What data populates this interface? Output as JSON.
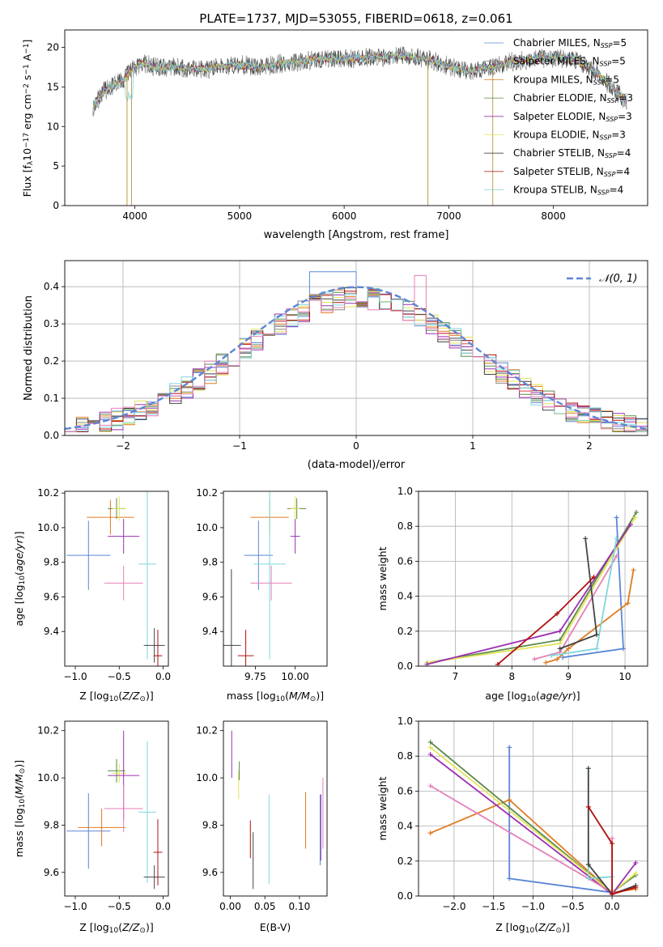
{
  "colors": {
    "Chabrier MILES": "#5b86d6",
    "Salpeter MILES": "#8a8a8a",
    "Kroupa MILES": "#e07b20",
    "Chabrier ELODIE": "#5a8a4a",
    "Salpeter ELODIE": "#9b30b0",
    "Kroupa ELODIE": "#e3e35a",
    "Chabrier STELIB": "#444444",
    "Salpeter STELIB": "#b01010",
    "Kroupa STELIB": "#7fd6dc",
    "pink": "#e47fb8",
    "gaussian": "#5b86d6",
    "grid": "#b0b0b0"
  },
  "chart_data": [
    {
      "id": "spectrum",
      "type": "line",
      "title": "PLATE=1737, MJD=53055, FIBERID=0618, z=0.061",
      "xlabel": "wavelength [Angstrom, rest frame]",
      "ylabel": "Flux [f_λ10^-17 erg cm^-2 s^-1 A^-1]",
      "xlim": [
        3330,
        8900
      ],
      "ylim": [
        0,
        22.2
      ],
      "xticks": [
        4000,
        5000,
        6000,
        7000,
        8000
      ],
      "yticks": [
        0,
        5,
        10,
        15,
        20
      ],
      "grid": false,
      "legend": "top-right",
      "legend_entries": [
        {
          "base": "Chabrier MILES, N",
          "sub": "SSP",
          "tail": "=5",
          "color": "Chabrier MILES"
        },
        {
          "base": "Salpeter MILES, N",
          "sub": "SSP",
          "tail": "=5",
          "color": "Salpeter MILES"
        },
        {
          "base": "Kroupa MILES, N",
          "sub": "SSP",
          "tail": "=5",
          "color": "Kroupa MILES"
        },
        {
          "base": "Chabrier ELODIE, N",
          "sub": "SSP",
          "tail": "=3",
          "color": "Chabrier ELODIE"
        },
        {
          "base": "Salpeter ELODIE, N",
          "sub": "SSP",
          "tail": "=3",
          "color": "Salpeter ELODIE"
        },
        {
          "base": "Kroupa ELODIE, N",
          "sub": "SSP",
          "tail": "=3",
          "color": "Kroupa ELODIE"
        },
        {
          "base": "Chabrier STELIB, N",
          "sub": "SSP",
          "tail": "=4",
          "color": "Chabrier STELIB"
        },
        {
          "base": "Salpeter STELIB, N",
          "sub": "SSP",
          "tail": "=4",
          "color": "Salpeter STELIB"
        },
        {
          "base": "Kroupa STELIB, N",
          "sub": "SSP",
          "tail": "=4",
          "color": "Kroupa STELIB"
        }
      ],
      "continuum": [
        [
          3600,
          12.5
        ],
        [
          3700,
          14.5
        ],
        [
          3800,
          15.2
        ],
        [
          3900,
          16
        ],
        [
          3950,
          17
        ],
        [
          4000,
          17.5
        ],
        [
          4100,
          18
        ],
        [
          4200,
          17.5
        ],
        [
          4400,
          17.5
        ],
        [
          4600,
          17.2
        ],
        [
          4800,
          17.5
        ],
        [
          5000,
          17.8
        ],
        [
          5200,
          17.4
        ],
        [
          5400,
          18
        ],
        [
          5600,
          18.3
        ],
        [
          5800,
          18.5
        ],
        [
          6000,
          18.6
        ],
        [
          6200,
          18.7
        ],
        [
          6400,
          18.8
        ],
        [
          6600,
          19
        ],
        [
          6800,
          18.5
        ],
        [
          7000,
          17.6
        ],
        [
          7200,
          17
        ],
        [
          7400,
          17.5
        ],
        [
          7600,
          18.2
        ],
        [
          7800,
          18.5
        ],
        [
          8000,
          18.7
        ],
        [
          8200,
          18.5
        ],
        [
          8400,
          17
        ],
        [
          8600,
          14.5
        ],
        [
          8700,
          13
        ]
      ],
      "spikes": [
        [
          3925,
          -18
        ],
        [
          3968,
          -18
        ],
        [
          6800,
          -18
        ],
        [
          7420,
          -18
        ]
      ]
    },
    {
      "id": "residuals",
      "type": "histogram",
      "xlabel": "(data-model)/error",
      "ylabel": "Normed distribution",
      "xlim": [
        -2.5,
        2.5
      ],
      "ylim": [
        0,
        0.47
      ],
      "xticks": [
        -2,
        -1,
        0,
        1,
        2
      ],
      "yticks": [
        0.0,
        0.1,
        0.2,
        0.3,
        0.4
      ],
      "grid": true,
      "legend": "top-right",
      "legend_label": "N(0,1)",
      "bin_width": 0.1,
      "reference_curve": "normal(0,1)"
    },
    {
      "id": "age_vs_Z",
      "type": "scatter",
      "xlabel": "Z [log10(Z/Z⊙)]",
      "ylabel": "age [log10(age/yr)]",
      "xlim": [
        -1.12,
        0.06
      ],
      "ylim": [
        9.2,
        10.21
      ],
      "xticks": [
        -1.0,
        -0.5,
        0.0
      ],
      "yticks": [
        9.4,
        9.6,
        9.8,
        10.0,
        10.2
      ],
      "points": [
        {
          "c": "Chabrier MILES",
          "x": -0.85,
          "y": 9.84,
          "ex": 0.25,
          "ey": 0.2
        },
        {
          "c": "Kroupa MILES",
          "x": -0.6,
          "y": 10.06,
          "ex": 0.27,
          "ey": 0.1
        },
        {
          "c": "Chabrier ELODIE",
          "x": -0.53,
          "y": 10.11,
          "ex": 0.1,
          "ey": 0.06
        },
        {
          "c": "Kroupa ELODIE",
          "x": -0.5,
          "y": 10.11,
          "ex": 0.08,
          "ey": 0.07
        },
        {
          "c": "Salpeter ELODIE",
          "x": -0.45,
          "y": 9.95,
          "ex": 0.18,
          "ey": 0.1
        },
        {
          "c": "pink",
          "x": -0.45,
          "y": 9.68,
          "ex": 0.22,
          "ey": 0.1
        },
        {
          "c": "Kroupa STELIB",
          "x": -0.18,
          "y": 9.79,
          "ex": 0.1,
          "ey": 0.55
        },
        {
          "c": "Chabrier STELIB",
          "x": -0.1,
          "y": 9.32,
          "ex": 0.12,
          "ey": 0.1
        },
        {
          "c": "Salpeter STELIB",
          "x": -0.06,
          "y": 9.26,
          "ex": 0.05,
          "ey": 0.15
        }
      ]
    },
    {
      "id": "age_vs_mass",
      "type": "scatter",
      "xlabel": "mass [log10(M/M⊙)]",
      "ylabel": "",
      "xlim": [
        9.55,
        10.2
      ],
      "ylim": [
        9.2,
        10.21
      ],
      "xticks": [
        9.75,
        10.0
      ],
      "yticks": [
        9.4,
        9.6,
        9.8,
        10.0,
        10.2
      ],
      "points": [
        {
          "c": "Chabrier MILES",
          "x": 9.77,
          "y": 9.84,
          "ex": 0.09,
          "ey": 0.2
        },
        {
          "c": "Kroupa MILES",
          "x": 9.84,
          "y": 10.06,
          "ex": 0.12,
          "ey": 0.1
        },
        {
          "c": "Chabrier ELODIE",
          "x": 10.01,
          "y": 10.11,
          "ex": 0.06,
          "ey": 0.06
        },
        {
          "c": "Kroupa ELODIE",
          "x": 10.0,
          "y": 10.11,
          "ex": 0.03,
          "ey": 0.07
        },
        {
          "c": "Salpeter ELODIE",
          "x": 10.0,
          "y": 9.95,
          "ex": 0.03,
          "ey": 0.1
        },
        {
          "c": "pink",
          "x": 9.85,
          "y": 9.68,
          "ex": 0.13,
          "ey": 0.1
        },
        {
          "c": "Kroupa STELIB",
          "x": 9.84,
          "y": 9.79,
          "ex": 0.1,
          "ey": 0.55
        },
        {
          "c": "Chabrier STELIB",
          "x": 9.6,
          "y": 9.32,
          "ex": 0.06,
          "ey": 0.44
        },
        {
          "c": "Salpeter STELIB",
          "x": 9.69,
          "y": 9.26,
          "ex": 0.05,
          "ey": 0.15
        }
      ]
    },
    {
      "id": "mw_vs_age",
      "type": "line",
      "xlabel": "age [log10(age/yr)]",
      "ylabel": "mass weight",
      "xlim": [
        6.35,
        10.4
      ],
      "ylim": [
        0,
        1
      ],
      "xticks": [
        7,
        8,
        9,
        10
      ],
      "yticks": [
        0.0,
        0.2,
        0.4,
        0.6,
        0.8,
        1.0
      ],
      "grid": true,
      "series": [
        {
          "c": "Chabrier MILES",
          "x": [
            9.85,
            9.97,
            8.9
          ],
          "y": [
            0.85,
            0.1,
            0.05
          ]
        },
        {
          "c": "Kroupa MILES",
          "x": [
            10.15,
            10.05,
            9.0,
            8.8,
            8.6
          ],
          "y": [
            0.55,
            0.36,
            0.1,
            0.04,
            0.02
          ]
        },
        {
          "c": "Chabrier ELODIE",
          "x": [
            10.2,
            8.85,
            6.5
          ],
          "y": [
            0.88,
            0.15,
            0.02
          ]
        },
        {
          "c": "Kroupa ELODIE",
          "x": [
            10.18,
            8.85,
            6.5
          ],
          "y": [
            0.85,
            0.13,
            0.02
          ]
        },
        {
          "c": "Salpeter ELODIE",
          "x": [
            10.1,
            8.85,
            6.5
          ],
          "y": [
            0.81,
            0.2,
            0.01
          ]
        },
        {
          "c": "pink",
          "x": [
            9.85,
            8.85,
            8.4
          ],
          "y": [
            0.63,
            0.08,
            0.04
          ]
        },
        {
          "c": "Kroupa STELIB",
          "x": [
            9.85,
            9.5,
            8.7
          ],
          "y": [
            0.73,
            0.1,
            0.06
          ]
        },
        {
          "c": "Chabrier STELIB",
          "x": [
            9.3,
            9.5,
            8.85
          ],
          "y": [
            0.73,
            0.18,
            0.1
          ]
        },
        {
          "c": "Salpeter STELIB",
          "x": [
            9.45,
            8.8,
            7.75
          ],
          "y": [
            0.51,
            0.3,
            0.01
          ]
        }
      ]
    },
    {
      "id": "mass_vs_Z",
      "type": "scatter",
      "xlabel": "Z [log10(Z/Z⊙)]",
      "ylabel": "mass [log10(M/M⊙)]",
      "xlim": [
        -1.12,
        0.06
      ],
      "ylim": [
        9.5,
        10.24
      ],
      "xticks": [
        -1.0,
        -0.5,
        0.0
      ],
      "yticks": [
        9.6,
        9.8,
        10.0,
        10.2
      ],
      "points": [
        {
          "c": "Chabrier MILES",
          "x": -0.85,
          "y": 9.775,
          "ex": 0.25,
          "ey": 0.16
        },
        {
          "c": "Kroupa MILES",
          "x": -0.7,
          "y": 9.79,
          "ex": 0.27,
          "ey": 0.08
        },
        {
          "c": "Chabrier ELODIE",
          "x": -0.53,
          "y": 10.03,
          "ex": 0.1,
          "ey": 0.05
        },
        {
          "c": "Kroupa ELODIE",
          "x": -0.5,
          "y": 10.02,
          "ex": 0.08,
          "ey": 0.04
        },
        {
          "c": "Salpeter ELODIE",
          "x": -0.45,
          "y": 10.01,
          "ex": 0.18,
          "ey": 0.19
        },
        {
          "c": "pink",
          "x": -0.45,
          "y": 9.87,
          "ex": 0.22,
          "ey": 0.1
        },
        {
          "c": "Kroupa STELIB",
          "x": -0.18,
          "y": 9.855,
          "ex": 0.1,
          "ey": 0.3
        },
        {
          "c": "Chabrier STELIB",
          "x": -0.1,
          "y": 9.58,
          "ex": 0.12,
          "ey": 0.05
        },
        {
          "c": "Salpeter STELIB",
          "x": -0.06,
          "y": 9.685,
          "ex": 0.05,
          "ey": 0.14
        }
      ]
    },
    {
      "id": "mass_vs_ebv",
      "type": "scatter",
      "xlabel": "E(B-V)",
      "ylabel": "",
      "xlim": [
        -0.01,
        0.14
      ],
      "ylim": [
        9.5,
        10.24
      ],
      "xticks": [
        0.0,
        0.05,
        0.1
      ],
      "yticks": [
        9.6,
        9.8,
        10.0,
        10.2
      ],
      "points": [
        {
          "c": "Salpeter ELODIE",
          "x": 0.002,
          "y": 10.1,
          "ex": 0,
          "ey": 0.1
        },
        {
          "c": "Kroupa ELODIE",
          "x": 0.012,
          "y": 9.97,
          "ex": 0,
          "ey": 0.06
        },
        {
          "c": "Chabrier ELODIE",
          "x": 0.013,
          "y": 10.03,
          "ex": 0,
          "ey": 0.04
        },
        {
          "c": "Salpeter STELIB",
          "x": 0.029,
          "y": 9.74,
          "ex": 0,
          "ey": 0.08
        },
        {
          "c": "Chabrier STELIB",
          "x": 0.033,
          "y": 9.65,
          "ex": 0,
          "ey": 0.12
        },
        {
          "c": "Kroupa STELIB",
          "x": 0.056,
          "y": 9.74,
          "ex": 0,
          "ey": 0.19
        },
        {
          "c": "Kroupa MILES",
          "x": 0.109,
          "y": 9.82,
          "ex": 0,
          "ey": 0.12
        },
        {
          "c": "Salpeter ELODIE",
          "x": 0.131,
          "y": 9.79,
          "ex": 0,
          "ey": 0.14
        },
        {
          "c": "pink",
          "x": 0.134,
          "y": 9.85,
          "ex": 0,
          "ey": 0.15
        },
        {
          "c": "Chabrier MILES",
          "x": 0.13,
          "y": 9.78,
          "ex": 0,
          "ey": 0.15
        }
      ]
    },
    {
      "id": "mw_vs_Z",
      "type": "line",
      "xlabel": "Z [log10(Z/Z⊙)]",
      "ylabel": "mass weight",
      "xlim": [
        -2.45,
        0.45
      ],
      "ylim": [
        0,
        1
      ],
      "xticks": [
        -2.0,
        -1.5,
        -1.0,
        -0.5,
        0.0
      ],
      "yticks": [
        0.0,
        0.2,
        0.4,
        0.6,
        0.8,
        1.0
      ],
      "grid": true,
      "series": [
        {
          "c": "Chabrier MILES",
          "x": [
            -1.3,
            -1.3,
            0.0
          ],
          "y": [
            0.85,
            0.1,
            0.02
          ]
        },
        {
          "c": "Kroupa MILES",
          "x": [
            -2.3,
            -1.3,
            0.0,
            0.3
          ],
          "y": [
            0.36,
            0.55,
            0.02,
            0.04
          ]
        },
        {
          "c": "Chabrier ELODIE",
          "x": [
            -2.3,
            0.0,
            0.3
          ],
          "y": [
            0.88,
            0.02,
            0.12
          ]
        },
        {
          "c": "Kroupa ELODIE",
          "x": [
            -2.3,
            0.0,
            0.3
          ],
          "y": [
            0.85,
            0.02,
            0.13
          ]
        },
        {
          "c": "Salpeter ELODIE",
          "x": [
            -2.3,
            0.0,
            0.3
          ],
          "y": [
            0.81,
            0.01,
            0.19
          ]
        },
        {
          "c": "pink",
          "x": [
            -2.3,
            0.0,
            0.0
          ],
          "y": [
            0.63,
            0.02,
            0.33
          ]
        },
        {
          "c": "Kroupa STELIB",
          "x": [
            -0.3,
            -0.3,
            0.0
          ],
          "y": [
            0.73,
            0.1,
            0.11
          ]
        },
        {
          "c": "Chabrier STELIB",
          "x": [
            -0.3,
            -0.3,
            0.0,
            0.3
          ],
          "y": [
            0.73,
            0.18,
            0.01,
            0.06
          ]
        },
        {
          "c": "Salpeter STELIB",
          "x": [
            -0.3,
            0.0,
            0.0,
            0.3
          ],
          "y": [
            0.51,
            0.3,
            0.01,
            0.05
          ]
        }
      ]
    }
  ]
}
